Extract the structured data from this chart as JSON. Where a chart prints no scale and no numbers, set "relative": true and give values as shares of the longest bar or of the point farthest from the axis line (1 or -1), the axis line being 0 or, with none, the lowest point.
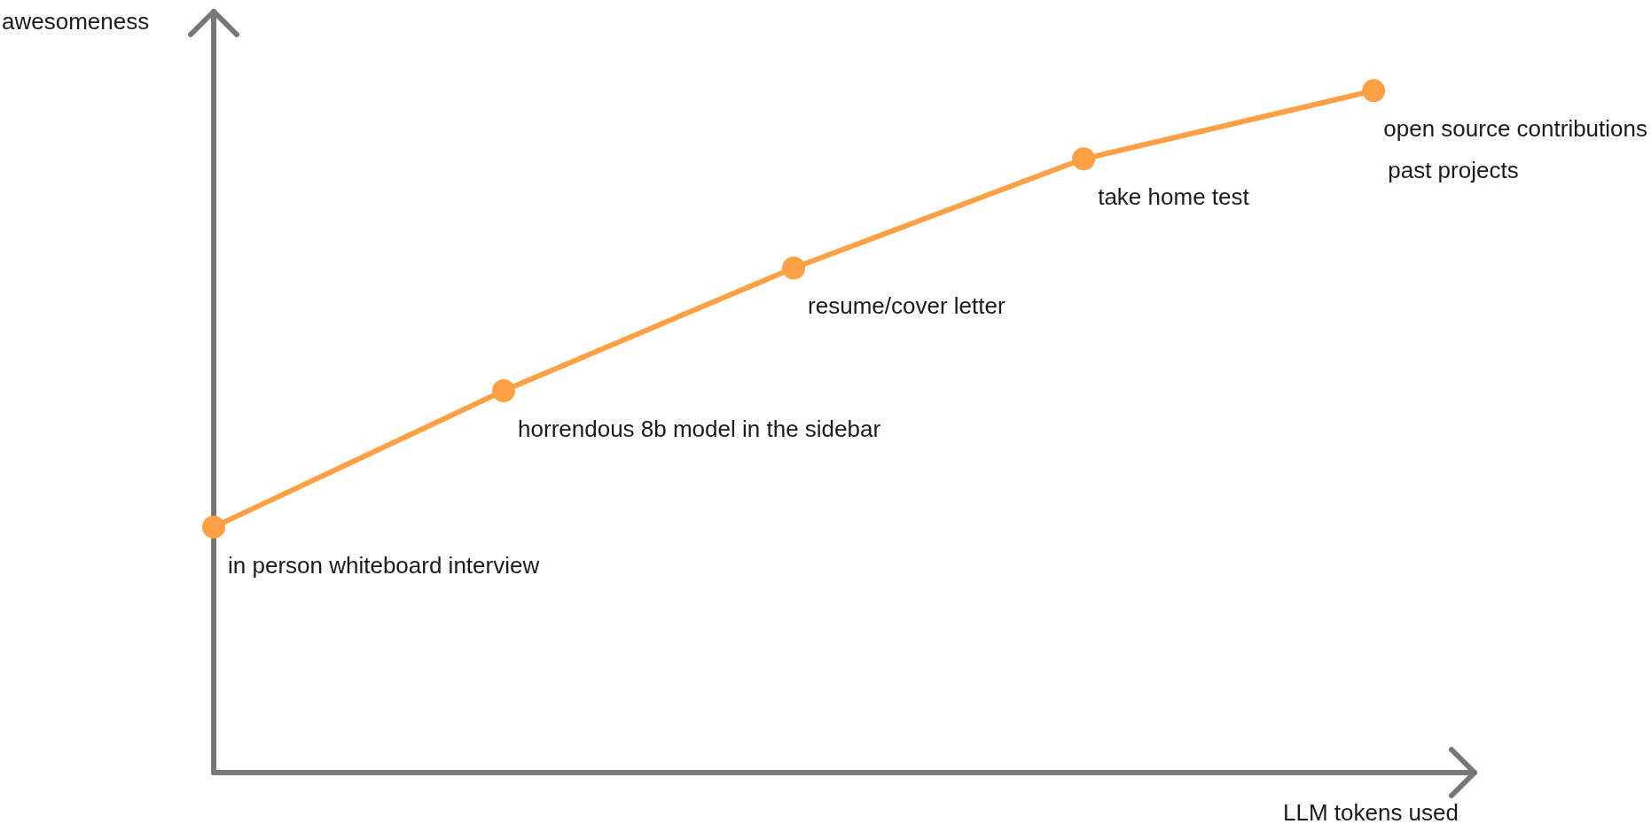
{
  "chart_data": {
    "type": "line",
    "relative": true,
    "xlabel": "LLM tokens used",
    "ylabel": "awesomeness",
    "marker": "circle",
    "categories": [
      null,
      null,
      null,
      null,
      null
    ],
    "series": [
      {
        "color": "#ffa044",
        "values": [
          0.36,
          0.56,
          0.74,
          0.9,
          1
        ]
      }
    ],
    "annotations": [
      "in person whiteboard interview",
      "horrendous 8b model in the sidebar",
      "resume/cover letter",
      "take home test",
      "open source contributions\npast projects"
    ]
  }
}
